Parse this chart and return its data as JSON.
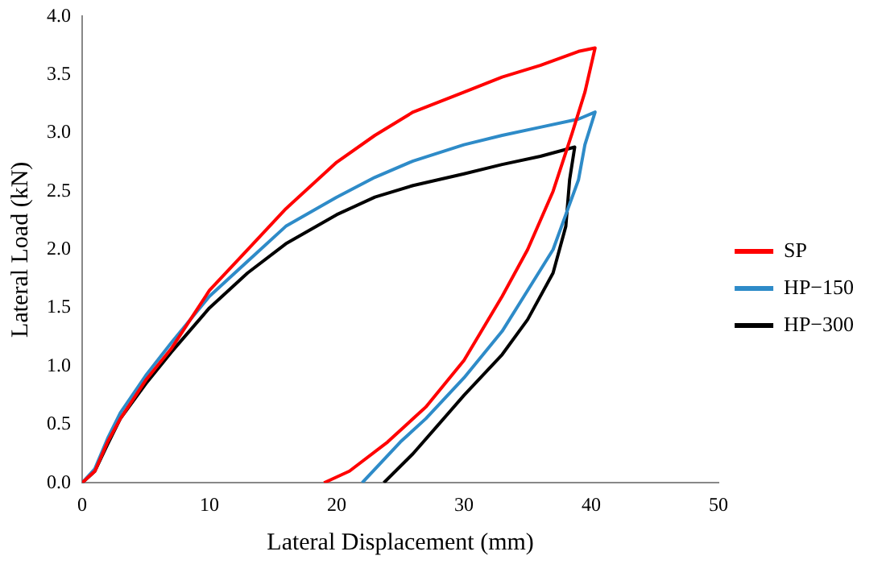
{
  "chart_data": {
    "type": "line",
    "xlabel": "Lateral Displacement (mm)",
    "ylabel": "Lateral Load (kN)",
    "xlim": [
      0,
      50
    ],
    "xticks": [
      0,
      10,
      20,
      30,
      40,
      50
    ],
    "ylim": [
      0,
      4
    ],
    "yticks": [
      {
        "value": 0,
        "label": "0.0"
      },
      {
        "value": 0.5,
        "label": "0.5"
      },
      {
        "value": 1,
        "label": "1.0"
      },
      {
        "value": 1.5,
        "label": "1.5"
      },
      {
        "value": 2,
        "label": "2.0"
      },
      {
        "value": 2.5,
        "label": "2.5"
      },
      {
        "value": 3,
        "label": "3.0"
      },
      {
        "value": 3.5,
        "label": "3.5"
      },
      {
        "value": 4,
        "label": "4.0"
      }
    ],
    "grid": false,
    "legend": "right",
    "marker": "none",
    "line_style": "solid",
    "series": [
      {
        "name": "SP",
        "color": "#ff0000",
        "x": [
          0,
          1,
          2,
          3,
          5,
          7,
          10,
          13,
          16,
          20,
          23,
          26,
          30,
          33,
          36,
          39,
          40.3,
          39.5,
          38.5,
          37,
          35,
          33,
          30,
          27,
          24,
          21,
          19
        ],
        "values": [
          0,
          0.1,
          0.35,
          0.55,
          0.88,
          1.15,
          1.65,
          2.0,
          2.35,
          2.75,
          2.98,
          3.18,
          3.35,
          3.48,
          3.58,
          3.7,
          3.73,
          3.35,
          3.0,
          2.5,
          2.0,
          1.6,
          1.05,
          0.65,
          0.35,
          0.1,
          0
        ]
      },
      {
        "name": "HP−150",
        "color": "#2e8bc8",
        "x": [
          0,
          1,
          2,
          3,
          5,
          7,
          10,
          13,
          16,
          20,
          23,
          26,
          30,
          33,
          36,
          39,
          40.3,
          39.5,
          39,
          38,
          37,
          35,
          33,
          30,
          27,
          25,
          22
        ],
        "values": [
          0,
          0.12,
          0.38,
          0.6,
          0.92,
          1.2,
          1.6,
          1.9,
          2.2,
          2.45,
          2.62,
          2.76,
          2.9,
          2.98,
          3.05,
          3.12,
          3.18,
          2.9,
          2.6,
          2.3,
          2.0,
          1.65,
          1.3,
          0.9,
          0.55,
          0.35,
          0
        ]
      },
      {
        "name": "HP−300",
        "color": "#000000",
        "x": [
          0,
          1,
          2,
          3,
          5,
          7,
          10,
          13,
          16,
          20,
          23,
          26,
          30,
          33,
          36,
          38.7,
          38.3,
          38,
          37,
          35,
          33,
          30,
          28,
          26,
          23.7
        ],
        "values": [
          0,
          0.1,
          0.33,
          0.55,
          0.85,
          1.12,
          1.5,
          1.8,
          2.05,
          2.3,
          2.45,
          2.55,
          2.65,
          2.73,
          2.8,
          2.88,
          2.6,
          2.2,
          1.8,
          1.4,
          1.1,
          0.75,
          0.5,
          0.25,
          0
        ]
      }
    ]
  }
}
